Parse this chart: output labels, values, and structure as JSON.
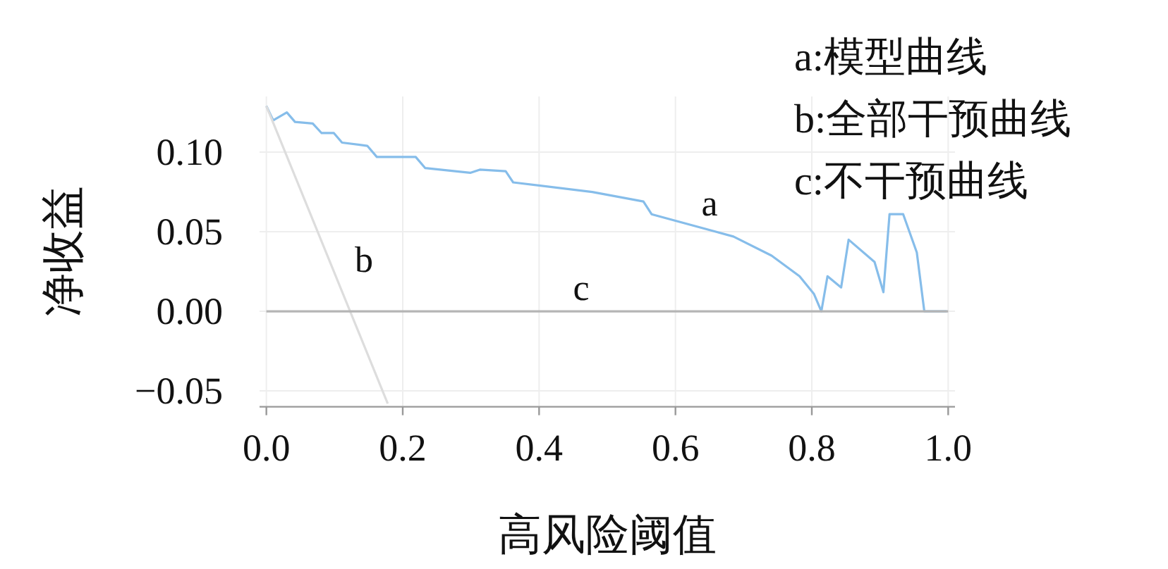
{
  "chart_data": {
    "type": "line",
    "xlabel": "高风险阈值",
    "ylabel": "净收益",
    "xlim": [
      -0.01,
      1.01
    ],
    "ylim": [
      -0.06,
      0.135
    ],
    "xticks": [
      {
        "value": 0,
        "label": "0.0"
      },
      {
        "value": 0.2,
        "label": "0.2"
      },
      {
        "value": 0.4,
        "label": "0.4"
      },
      {
        "value": 0.6,
        "label": "0.6"
      },
      {
        "value": 0.8,
        "label": "0.8"
      },
      {
        "value": 1,
        "label": "1.0"
      }
    ],
    "yticks": [
      {
        "value": -0.05,
        "label": "−0.05"
      },
      {
        "value": 0,
        "label": "0.00"
      },
      {
        "value": 0.05,
        "label": "0.05"
      },
      {
        "value": 0.1,
        "label": "0.10"
      }
    ],
    "grid": true,
    "series": [
      {
        "name": "a",
        "color": "#86bdea",
        "x": [
          0,
          0.01,
          0.03,
          0.042,
          0.068,
          0.081,
          0.099,
          0.111,
          0.148,
          0.162,
          0.219,
          0.233,
          0.299,
          0.313,
          0.351,
          0.362,
          0.478,
          0.553,
          0.565,
          0.685,
          0.741,
          0.782,
          0.803,
          0.814,
          0.823,
          0.843,
          0.854,
          0.892,
          0.905,
          0.914,
          0.934,
          0.954,
          0.965,
          0.998
        ],
        "values": [
          0.129,
          0.12,
          0.125,
          0.119,
          0.118,
          0.112,
          0.112,
          0.106,
          0.104,
          0.097,
          0.097,
          0.09,
          0.087,
          0.089,
          0.088,
          0.081,
          0.075,
          0.069,
          0.061,
          0.047,
          0.035,
          0.022,
          0.011,
          0,
          0.022,
          0.015,
          0.045,
          0.031,
          0.012,
          0.061,
          0.061,
          0.037,
          0,
          0
        ]
      },
      {
        "name": "b",
        "color": "#dddddd",
        "x": [
          0,
          0.178
        ],
        "values": [
          0.129,
          -0.058
        ]
      },
      {
        "name": "c",
        "color": "#b5b5b5",
        "x": [
          0,
          1
        ],
        "values": [
          0,
          0
        ]
      }
    ],
    "annotations": [
      "a:模型曲线",
      "b:全部干预曲线",
      "c:不干预曲线"
    ]
  }
}
